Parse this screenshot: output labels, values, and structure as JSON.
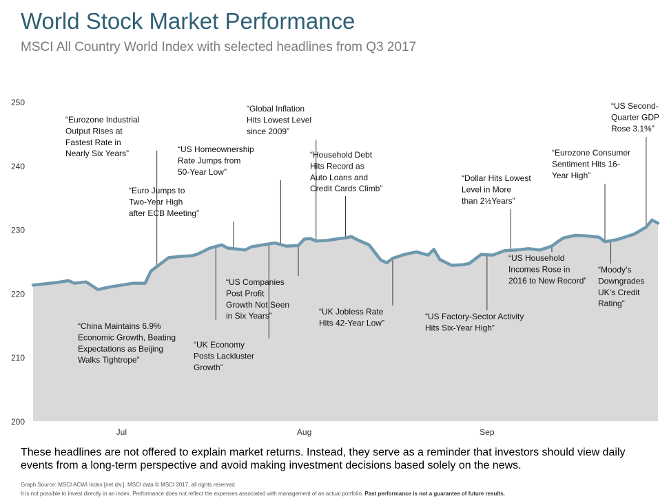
{
  "header": {
    "title": "World Stock Market Performance",
    "subtitle": "MSCI All Country World Index with selected headlines from Q3 2017"
  },
  "footer": {
    "disclaimer": "These headlines are not offered to explain market returns. Instead, they serve as a reminder that investors should view daily events from a long-term perspective and avoid making investment decisions based solely on the news.",
    "source": "Graph Source: MSCI ACWI Index [net div.]. MSCI data © MSCI 2017, all rights reserved.",
    "note_plain": "It is not possible to invest directly in an index. Performance does not reflect the expenses associated with management of an actual portfolio. ",
    "note_bold": "Past performance is not a guarantee of future results."
  },
  "colors": {
    "line": "#6e98ae",
    "area": "#d9d9d9",
    "title": "#2e5f73",
    "annotation_line": "#333333"
  },
  "chart_data": {
    "type": "area",
    "title": "World Stock Market Performance",
    "subtitle": "MSCI All Country World Index with selected headlines from Q3 2017",
    "xlabel": "",
    "ylabel": "",
    "ylim": [
      200,
      250
    ],
    "yticks": [
      200,
      210,
      220,
      230,
      240,
      250
    ],
    "x_tick_labels": [
      {
        "label": "Jul",
        "date": "2017-07-01"
      },
      {
        "label": "Aug",
        "date": "2017-08-01"
      },
      {
        "label": "Sep",
        "date": "2017-09-01"
      }
    ],
    "xlim": [
      "2017-06-16",
      "2017-09-30"
    ],
    "grid": false,
    "series": [
      {
        "name": "",
        "x": [
          "2017-06-16",
          "2017-06-20",
          "2017-06-22",
          "2017-06-23",
          "2017-06-25",
          "2017-06-27",
          "2017-06-29",
          "2017-07-01",
          "2017-07-03",
          "2017-07-05",
          "2017-07-06",
          "2017-07-07",
          "2017-07-09",
          "2017-07-11",
          "2017-07-13",
          "2017-07-14",
          "2017-07-16",
          "2017-07-18",
          "2017-07-19",
          "2017-07-21",
          "2017-07-22",
          "2017-07-23",
          "2017-07-25",
          "2017-07-27",
          "2017-07-29",
          "2017-07-31",
          "2017-08-01",
          "2017-08-02",
          "2017-08-03",
          "2017-08-05",
          "2017-08-07",
          "2017-08-08",
          "2017-08-09",
          "2017-08-10",
          "2017-08-12",
          "2017-08-14",
          "2017-08-15",
          "2017-08-16",
          "2017-08-18",
          "2017-08-20",
          "2017-08-22",
          "2017-08-23",
          "2017-08-24",
          "2017-08-26",
          "2017-08-28",
          "2017-08-29",
          "2017-08-31",
          "2017-09-02",
          "2017-09-04",
          "2017-09-06",
          "2017-09-08",
          "2017-09-10",
          "2017-09-12",
          "2017-09-13",
          "2017-09-14",
          "2017-09-16",
          "2017-09-18",
          "2017-09-20",
          "2017-09-21",
          "2017-09-23",
          "2017-09-25",
          "2017-09-26",
          "2017-09-28",
          "2017-09-29",
          "2017-09-30"
        ],
        "y": [
          221.3,
          221.7,
          222.0,
          221.6,
          221.8,
          220.6,
          221.0,
          221.3,
          221.6,
          221.6,
          223.5,
          224.2,
          225.6,
          225.8,
          225.9,
          226.2,
          227.1,
          227.6,
          227.1,
          226.9,
          226.8,
          227.3,
          227.6,
          227.9,
          227.4,
          227.5,
          228.5,
          228.6,
          228.2,
          228.3,
          228.6,
          228.7,
          228.9,
          228.4,
          227.6,
          225.2,
          224.8,
          225.5,
          226.1,
          226.5,
          226.0,
          226.9,
          225.3,
          224.4,
          224.5,
          224.7,
          226.1,
          226.0,
          226.7,
          226.8,
          227.0,
          226.8,
          227.4,
          228.1,
          228.7,
          229.1,
          229.0,
          228.8,
          228.1,
          228.4,
          229.0,
          229.3,
          230.4,
          231.5,
          231.0
        ]
      }
    ],
    "annotations": [
      {
        "lines": [
          "“Eurozone Industrial",
          "Output Rises at",
          "Fastest Rate in",
          "Nearly Six Years”"
        ],
        "date": "2017-07-07"
      },
      {
        "lines": [
          "“China Maintains 6.9%",
          "Economic Growth, Beating",
          "Expectations as Beijing",
          "Walks Tightrope”"
        ],
        "date": "2017-07-17"
      },
      {
        "lines": [
          "“Euro Jumps to",
          "Two-Year High",
          "after ECB Meeting”"
        ],
        "date": "2017-07-20"
      },
      {
        "lines": [
          "“US Homeownership",
          "Rate Jumps from",
          "50-Year Low”"
        ],
        "date": "2017-07-28"
      },
      {
        "lines": [
          "“UK Economy",
          "Posts Lackluster",
          "Growth”"
        ],
        "date": "2017-07-26"
      },
      {
        "lines": [
          "“US Companies",
          "Post Profit",
          "Growth Not Seen",
          "in Six Years”"
        ],
        "date": "2017-07-31"
      },
      {
        "lines": [
          "“Global Inflation",
          "Hits Lowest Level",
          "since 2009”"
        ],
        "date": "2017-08-03"
      },
      {
        "lines": [
          "“Household Debt",
          "Hits Record as",
          "Auto Loans and",
          "Credit Cards Climb”"
        ],
        "date": "2017-08-08"
      },
      {
        "lines": [
          "“UK Jobless Rate",
          "Hits 42-Year Low”"
        ],
        "date": "2017-08-16"
      },
      {
        "lines": [
          "“US Factory-Sector Activity",
          "Hits Six-Year High”"
        ],
        "date": "2017-09-01"
      },
      {
        "lines": [
          "“Dollar Hits Lowest",
          "Level in More",
          "than 2½Years”"
        ],
        "date": "2017-09-05"
      },
      {
        "lines": [
          "“US Household",
          "Incomes Rose in",
          "2016 to New Record”"
        ],
        "date": "2017-09-12"
      },
      {
        "lines": [
          "“Eurozone Consumer",
          "Sentiment Hits 16-",
          "Year High”"
        ],
        "date": "2017-09-21"
      },
      {
        "lines": [
          "“Moody’s",
          "Downgrades",
          "UK’s Credit",
          "Rating”"
        ],
        "date": "2017-09-22"
      },
      {
        "lines": [
          "“US Second-",
          "Quarter GDP",
          "Rose 3.1%”"
        ],
        "date": "2017-09-28"
      }
    ]
  }
}
